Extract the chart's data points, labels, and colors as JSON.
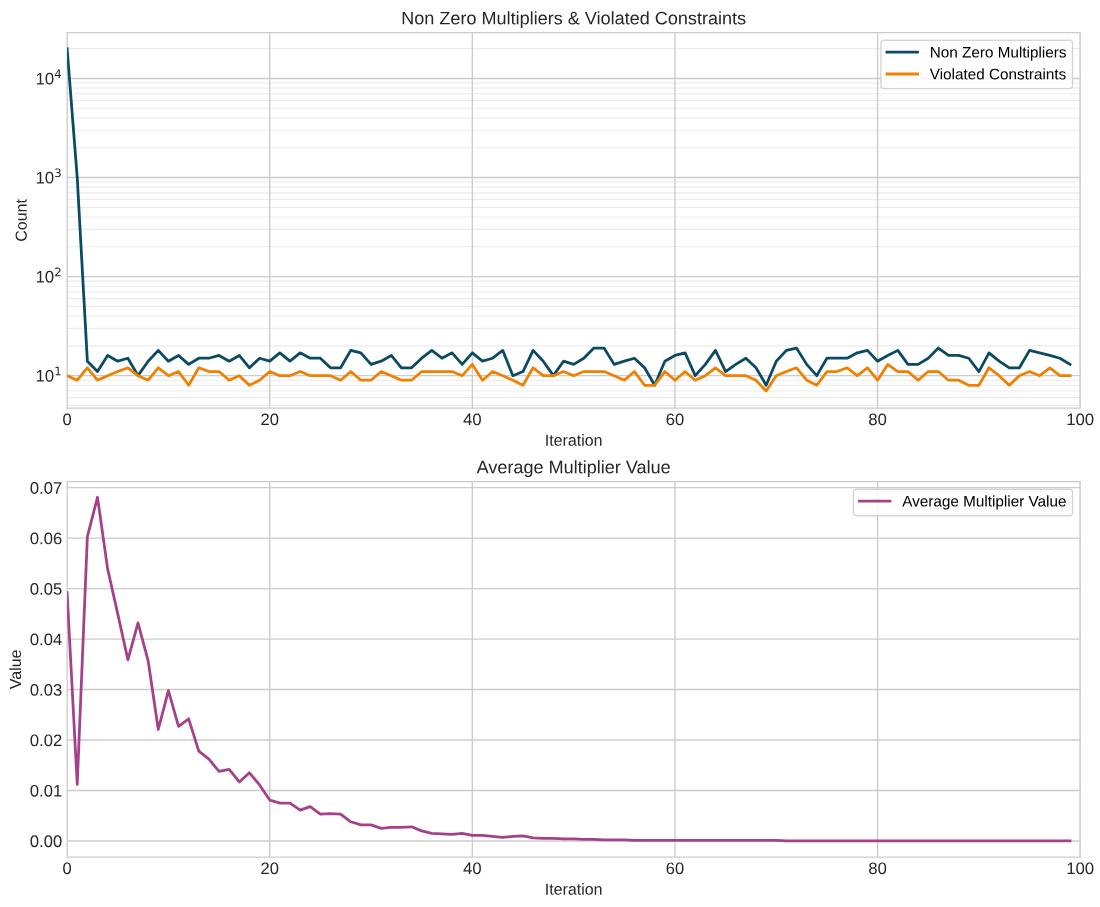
{
  "chart_data": [
    {
      "type": "line",
      "title": "Non Zero Multipliers & Violated Constraints",
      "xlabel": "Iteration",
      "ylabel": "Count",
      "log": "y",
      "x": [
        0,
        1,
        2,
        3,
        4,
        5,
        6,
        7,
        8,
        9,
        10,
        11,
        12,
        13,
        14,
        15,
        16,
        17,
        18,
        19,
        20,
        21,
        22,
        23,
        24,
        25,
        26,
        27,
        28,
        29,
        30,
        31,
        32,
        33,
        34,
        35,
        36,
        37,
        38,
        39,
        40,
        41,
        42,
        43,
        44,
        45,
        46,
        47,
        48,
        49,
        50,
        51,
        52,
        53,
        54,
        55,
        56,
        57,
        58,
        59,
        60,
        61,
        62,
        63,
        64,
        65,
        66,
        67,
        68,
        69,
        70,
        71,
        72,
        73,
        74,
        75,
        76,
        77,
        78,
        79,
        80,
        81,
        82,
        83,
        84,
        85,
        86,
        87,
        88,
        89,
        90,
        91,
        92,
        93,
        94,
        95,
        96,
        97,
        98,
        99
      ],
      "series": [
        {
          "name": "Non Zero Multipliers",
          "color": "#0b4a63",
          "values": [
            20000,
            1000,
            14,
            11,
            16,
            14,
            15,
            10,
            14,
            18,
            14,
            16,
            13,
            15,
            15,
            16,
            14,
            16,
            12,
            15,
            14,
            17,
            14,
            17,
            15,
            15,
            12,
            12,
            18,
            17,
            13,
            14,
            16,
            12,
            12,
            15,
            18,
            15,
            17,
            13,
            17,
            14,
            15,
            18,
            10,
            11,
            18,
            14,
            10,
            14,
            13,
            15,
            19,
            19,
            13,
            14,
            15,
            12,
            8,
            14,
            16,
            17,
            10,
            13,
            18,
            11,
            13,
            15,
            12,
            8,
            14,
            18,
            19,
            13,
            10,
            15,
            15,
            15,
            17,
            18,
            14,
            16,
            18,
            13,
            13,
            15,
            19,
            16,
            16,
            15,
            11,
            17,
            14,
            12,
            12,
            18,
            17,
            16,
            15,
            13
          ]
        },
        {
          "name": "Violated Constraints",
          "color": "#f08000",
          "values": [
            10,
            9,
            12,
            9,
            10,
            11,
            12,
            10,
            9,
            12,
            10,
            11,
            8,
            12,
            11,
            11,
            9,
            10,
            8,
            9,
            11,
            10,
            10,
            11,
            10,
            10,
            10,
            9,
            11,
            9,
            9,
            11,
            10,
            9,
            9,
            11,
            11,
            11,
            11,
            10,
            13,
            9,
            11,
            10,
            9,
            8,
            12,
            10,
            10,
            11,
            10,
            11,
            11,
            11,
            10,
            9,
            11,
            8,
            8,
            11,
            9,
            11,
            9,
            10,
            12,
            10,
            10,
            10,
            9,
            7,
            10,
            11,
            12,
            9,
            8,
            11,
            11,
            12,
            10,
            12,
            9,
            13,
            11,
            11,
            9,
            11,
            11,
            9,
            9,
            8,
            8,
            12,
            10,
            8,
            10,
            11,
            10,
            12,
            10,
            10
          ]
        }
      ],
      "xlim": [
        0,
        100
      ],
      "xticks": [
        0,
        20,
        40,
        60,
        80,
        100
      ],
      "ylim": [
        4.7,
        29000
      ],
      "yticks": [
        {
          "value": 10,
          "label": "10$^{1}$"
        },
        {
          "value": 100,
          "label": "10$^{2}$"
        },
        {
          "value": 1000,
          "label": "10$^{3}$"
        },
        {
          "value": 10000,
          "label": "10$^{4}$"
        }
      ],
      "grid": true,
      "legend": "top right",
      "line_style": "solid"
    },
    {
      "type": "line",
      "title": "Average Multiplier Value",
      "xlabel": "Iteration",
      "ylabel": "Value",
      "x": [
        0,
        1,
        2,
        3,
        4,
        5,
        6,
        7,
        8,
        9,
        10,
        11,
        12,
        13,
        14,
        15,
        16,
        17,
        18,
        19,
        20,
        21,
        22,
        23,
        24,
        25,
        26,
        27,
        28,
        29,
        30,
        31,
        32,
        33,
        34,
        35,
        36,
        37,
        38,
        39,
        40,
        41,
        42,
        43,
        44,
        45,
        46,
        47,
        48,
        49,
        50,
        51,
        52,
        53,
        54,
        55,
        56,
        57,
        58,
        59,
        60,
        61,
        62,
        63,
        64,
        65,
        66,
        67,
        68,
        69,
        70,
        71,
        72,
        73,
        74,
        75,
        76,
        77,
        78,
        79,
        80,
        81,
        82,
        83,
        84,
        85,
        86,
        87,
        88,
        89,
        90,
        91,
        92,
        93,
        94,
        95,
        96,
        97,
        98,
        99
      ],
      "series": [
        {
          "name": "Average Multiplier Value",
          "color": "#a3428b",
          "values": [
            0.0492,
            0.0112,
            0.0603,
            0.0681,
            0.0539,
            0.045,
            0.0359,
            0.0432,
            0.0357,
            0.0221,
            0.0298,
            0.0227,
            0.0242,
            0.0178,
            0.0162,
            0.0138,
            0.0142,
            0.0117,
            0.0135,
            0.0111,
            0.0081,
            0.0075,
            0.0075,
            0.0061,
            0.0068,
            0.0053,
            0.0054,
            0.0053,
            0.0038,
            0.0032,
            0.0032,
            0.0025,
            0.0027,
            0.0027,
            0.0028,
            0.002,
            0.0015,
            0.0014,
            0.0013,
            0.0015,
            0.0011,
            0.0011,
            0.0009,
            0.0007,
            0.0009,
            0.001,
            0.0006,
            0.0005,
            0.0005,
            0.0004,
            0.0004,
            0.0003,
            0.0003,
            0.0002,
            0.0002,
            0.0002,
            0.0001,
            0.0001,
            0.0001,
            0.0001,
            0.0001,
            0.0001,
            0.0001,
            0.0001,
            0.0001,
            0.0001,
            0.0001,
            0.0001,
            0.0001,
            0.0001,
            0.0001,
            0,
            0,
            0,
            0,
            0,
            0,
            0,
            0,
            0,
            0,
            0,
            0,
            0,
            0,
            0,
            0,
            0,
            0,
            0,
            0,
            0,
            0,
            0,
            0,
            0,
            0,
            0,
            0,
            0
          ]
        }
      ],
      "xlim": [
        0,
        100
      ],
      "xticks": [
        0,
        20,
        40,
        60,
        80,
        100
      ],
      "ylim": [
        -0.0032,
        0.0712
      ],
      "yticks": [
        {
          "value": 0,
          "label": "0.00"
        },
        {
          "value": 0.01,
          "label": "0.01"
        },
        {
          "value": 0.02,
          "label": "0.02"
        },
        {
          "value": 0.03,
          "label": "0.03"
        },
        {
          "value": 0.04,
          "label": "0.04"
        },
        {
          "value": 0.05,
          "label": "0.05"
        },
        {
          "value": 0.06,
          "label": "0.06"
        },
        {
          "value": 0.07,
          "label": "0.07"
        }
      ],
      "grid": true,
      "legend": "top right",
      "line_style": "solid"
    }
  ]
}
